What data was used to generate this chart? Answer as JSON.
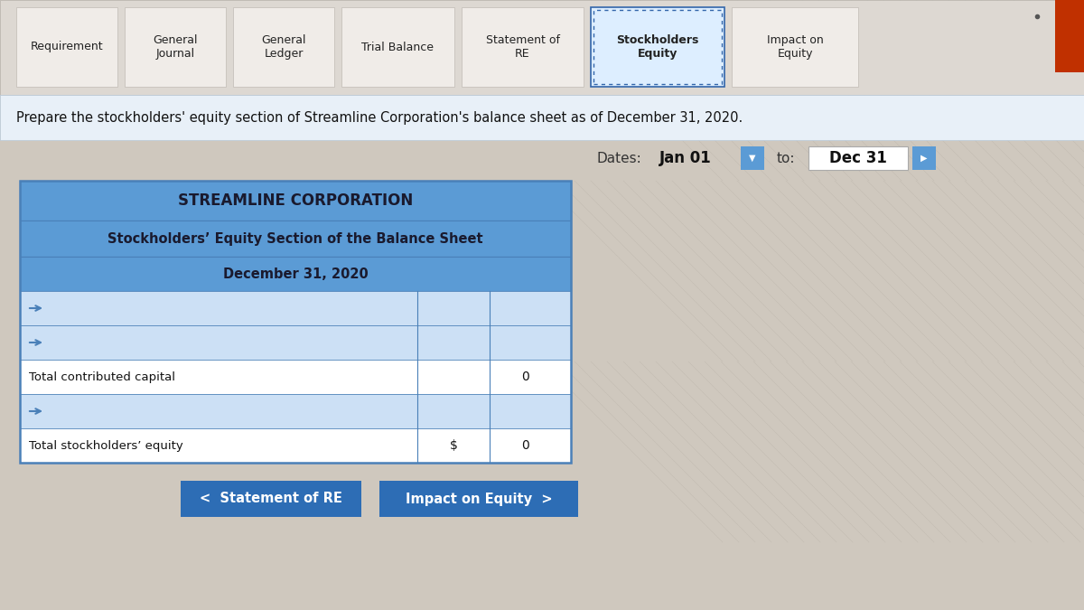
{
  "bg_color": "#cfc8be",
  "nav_bar_bg": "#ddd8d2",
  "nav_bar_border": "#b8b4ae",
  "nav_tabs": [
    "Requirement",
    "General\nJournal",
    "General\nLedger",
    "Trial Balance",
    "Statement of\nRE",
    "Stockholders\nEquity",
    "Impact on\nEquity"
  ],
  "active_tab_index": 5,
  "active_tab_bg": "#ddeeff",
  "active_tab_border": "#3366aa",
  "inactive_tab_bg": "#f0ece8",
  "inactive_tab_border": "#c0bab4",
  "tab_text_color": "#222222",
  "instruction_bg": "#e8f0f8",
  "instruction_border": "#b8c8d8",
  "instruction_text": "Prepare the stockholders' equity section of Streamline Corporation's balance sheet as of December 31, 2020.",
  "instruction_text_color": "#111111",
  "dates_label": "Dates:",
  "date_from": "Jan 01",
  "date_to": "Dec 31",
  "to_label": "to:",
  "table_header_bg": "#5b9bd5",
  "table_header_text_color": "#1a1a2e",
  "table_header_line1": "STREAMLINE CORPORATION",
  "table_header_line2": "Stockholders’ Equity Section of the Balance Sheet",
  "table_header_line3": "December 31, 2020",
  "table_body_bg": "#ffffff",
  "table_stripe_bg": "#cce0f5",
  "table_border_color": "#4a80b8",
  "table_rows": [
    {
      "label": "",
      "col1": "",
      "col2": "",
      "stripe": true
    },
    {
      "label": "",
      "col1": "",
      "col2": "",
      "stripe": true
    },
    {
      "label": "Total contributed capital",
      "col1": "",
      "col2": "0",
      "stripe": false
    },
    {
      "label": "",
      "col1": "",
      "col2": "",
      "stripe": true
    },
    {
      "label": "Total stockholders’ equity",
      "col1": "$",
      "col2": "0",
      "stripe": false
    }
  ],
  "btn_left_text": "<  Statement of RE",
  "btn_right_text": "Impact on Equity  >",
  "btn_color": "#2d6db5",
  "btn_text_color": "#ffffff",
  "top_right_color": "#c03000",
  "dot_color": "#555555"
}
